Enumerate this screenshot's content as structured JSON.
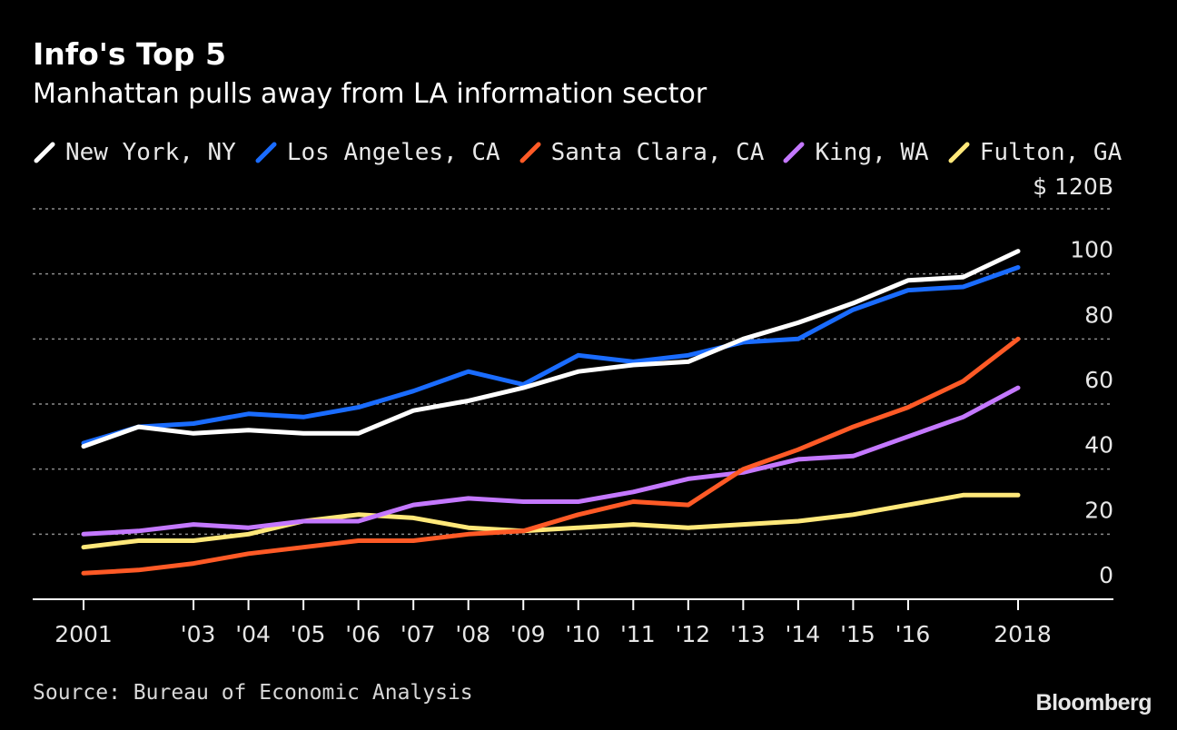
{
  "header": {
    "title": "Info's Top 5",
    "subtitle": "Manhattan pulls away from LA information sector"
  },
  "footer": {
    "source": "Source: Bureau of Economic Analysis",
    "logo": "Bloomberg"
  },
  "chart_data": {
    "type": "line",
    "title": "Info's Top 5",
    "subtitle": "Manhattan pulls away from LA information sector",
    "x": [
      2001,
      2002,
      2003,
      2004,
      2005,
      2006,
      2007,
      2008,
      2009,
      2010,
      2011,
      2012,
      2013,
      2014,
      2015,
      2016,
      2017,
      2018
    ],
    "x_tick_labels": [
      "2001",
      "'03",
      "'04",
      "'05",
      "'06",
      "'07",
      "'08",
      "'09",
      "'10",
      "'11",
      "'12",
      "'13",
      "'14",
      "'15",
      "'16",
      "2018"
    ],
    "x_tick_values": [
      2001,
      2003,
      2004,
      2005,
      2006,
      2007,
      2008,
      2009,
      2010,
      2011,
      2012,
      2013,
      2014,
      2015,
      2016,
      2018
    ],
    "y_tick_labels": [
      "0",
      "20",
      "40",
      "60",
      "80",
      "100",
      "$ 120B"
    ],
    "y_tick_values": [
      0,
      20,
      40,
      60,
      80,
      100,
      120
    ],
    "ylim": [
      0,
      120
    ],
    "grid": "horizontal dotted",
    "legend_position": "top",
    "series": [
      {
        "name": "New York, NY",
        "color": "#ffffff",
        "values": [
          47,
          53,
          51,
          52,
          51,
          51,
          58,
          61,
          65,
          70,
          72,
          73,
          80,
          85,
          91,
          98,
          99,
          107
        ]
      },
      {
        "name": "Los Angeles, CA",
        "color": "#1a6cff",
        "values": [
          48,
          53,
          54,
          57,
          56,
          59,
          64,
          70,
          66,
          75,
          73,
          75,
          79,
          80,
          89,
          95,
          96,
          102
        ]
      },
      {
        "name": "Santa Clara, CA",
        "color": "#ff5a26",
        "values": [
          8,
          9,
          11,
          14,
          16,
          18,
          18,
          20,
          21,
          26,
          30,
          29,
          40,
          46,
          53,
          59,
          67,
          80
        ]
      },
      {
        "name": "King, WA",
        "color": "#c478ff",
        "values": [
          20,
          21,
          23,
          22,
          24,
          24,
          29,
          31,
          30,
          30,
          33,
          37,
          39,
          43,
          44,
          50,
          56,
          65
        ]
      },
      {
        "name": "Fulton, GA",
        "color": "#ffe87a",
        "values": [
          16,
          18,
          18,
          20,
          24,
          26,
          25,
          22,
          21,
          22,
          23,
          22,
          23,
          24,
          26,
          29,
          32,
          32
        ]
      }
    ]
  }
}
